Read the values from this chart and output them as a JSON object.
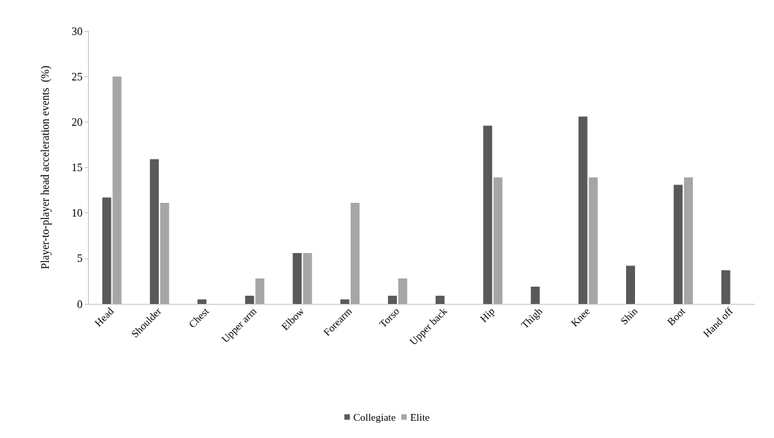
{
  "chart_data": {
    "type": "bar",
    "ylabel": "Player-to-player head acceleration events  (%)",
    "categories": [
      "Head",
      "Shoulder",
      "Chest",
      "Upper arm",
      "Elbow",
      "Forearm",
      "Torso",
      "Upper back",
      "Hip",
      "Thigh",
      "Knee",
      "Shin",
      "Boot",
      "Hand off"
    ],
    "series": [
      {
        "name": "Collegiate",
        "color": "#595959",
        "values": [
          11.7,
          15.9,
          0.5,
          0.9,
          5.6,
          0.5,
          0.9,
          0.9,
          19.6,
          1.9,
          20.6,
          4.2,
          13.1,
          3.7
        ]
      },
      {
        "name": "Elite",
        "color": "#a6a6a6",
        "values": [
          25.0,
          11.1,
          0,
          2.8,
          5.6,
          11.1,
          2.8,
          0,
          13.9,
          0,
          13.9,
          0,
          13.9,
          0
        ]
      }
    ],
    "ylim": [
      0,
      30
    ],
    "yticks": [
      0,
      5,
      10,
      15,
      20,
      25,
      30
    ],
    "grid": false,
    "legend": "bottom"
  }
}
